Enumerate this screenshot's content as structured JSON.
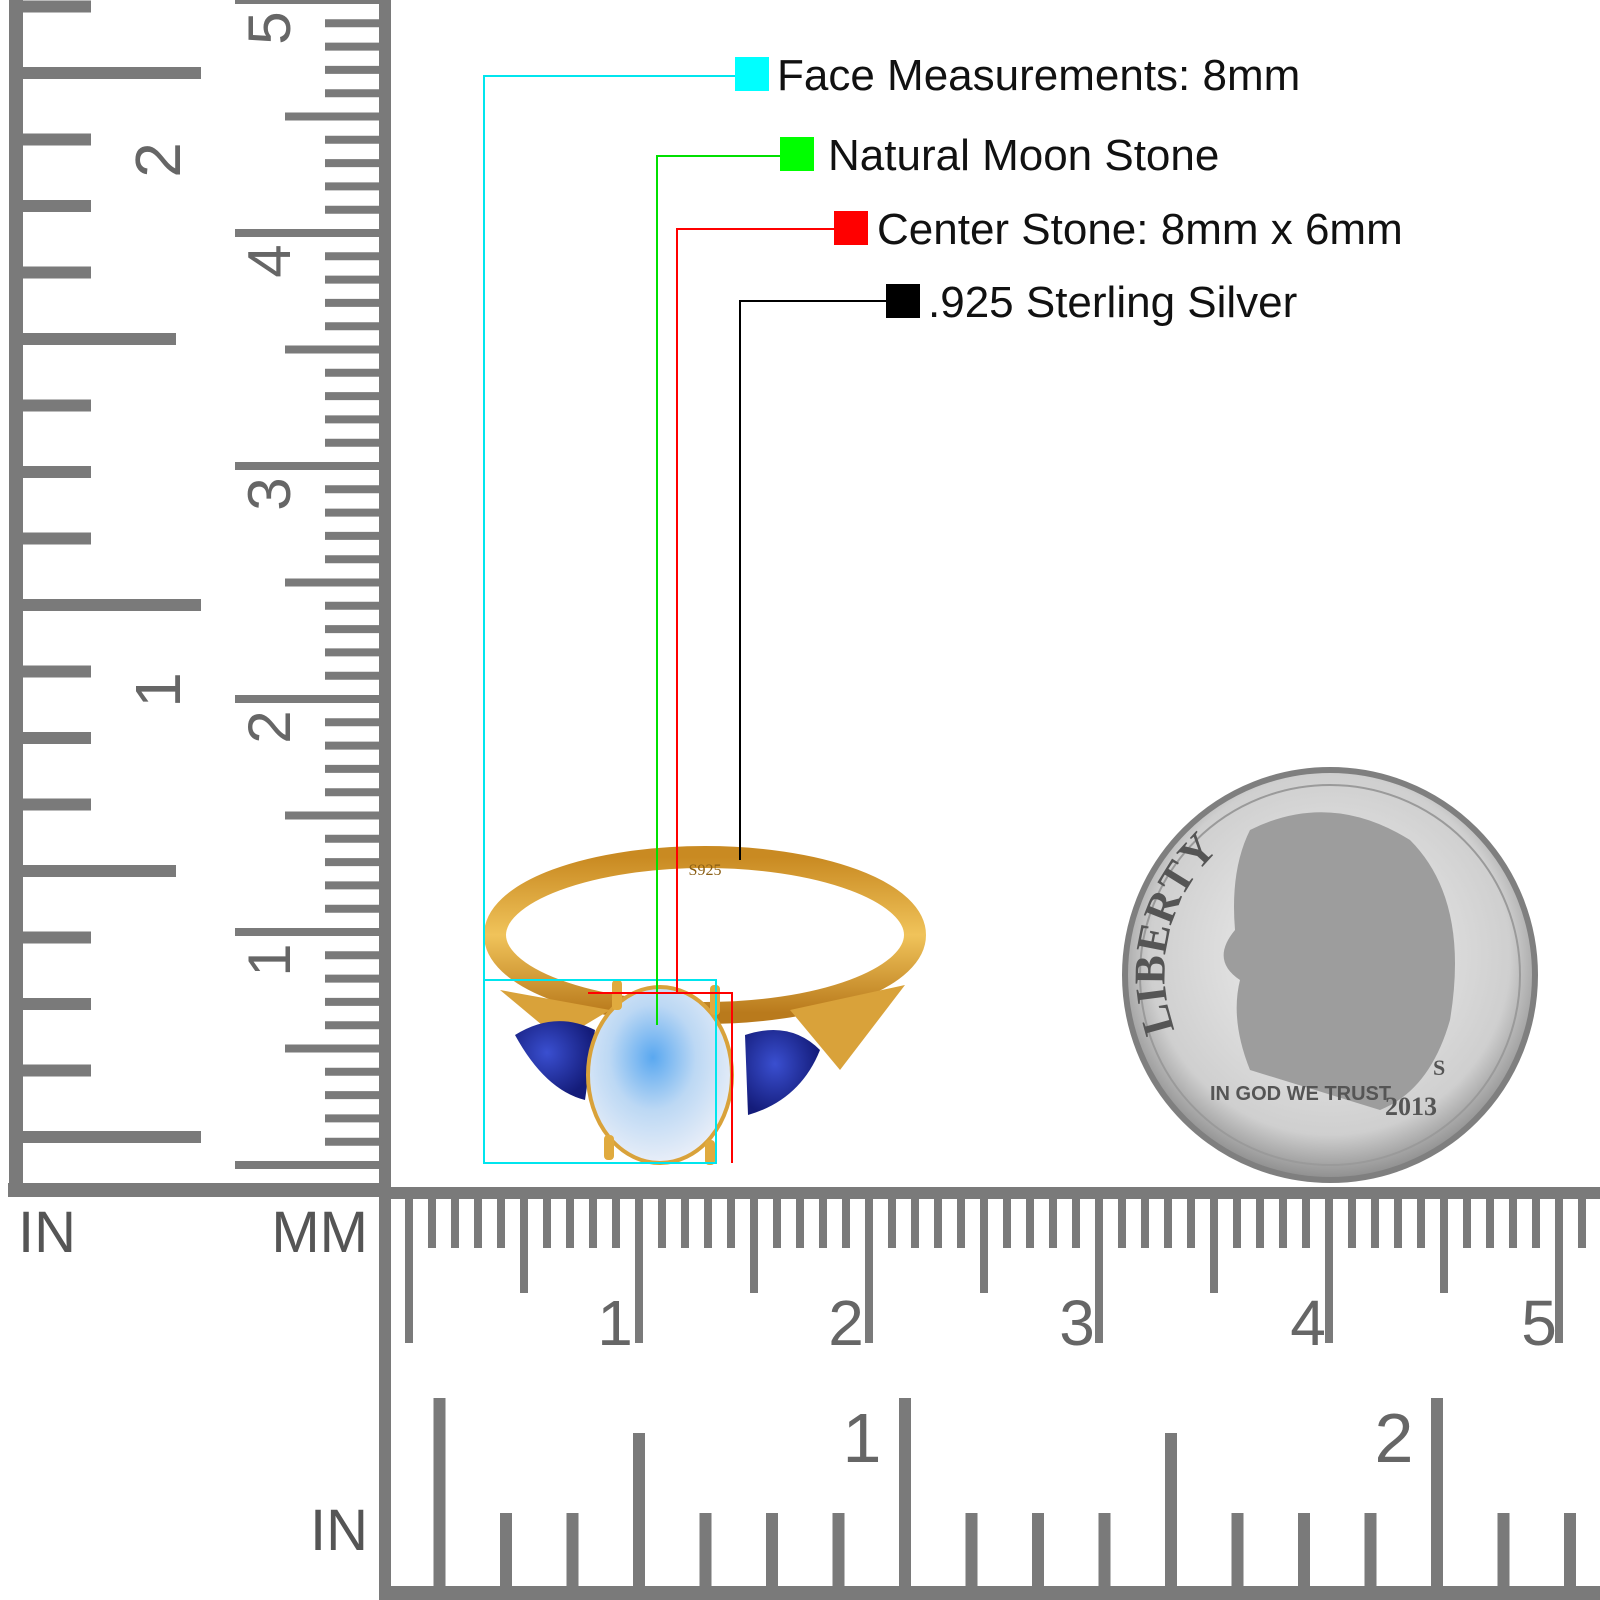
{
  "legend": [
    {
      "label": "Face Measurements: 8mm",
      "color": "#00ffff"
    },
    {
      "label": "Natural Moon Stone",
      "color": "#00ff00"
    },
    {
      "label": "Center Stone: 8mm x 6mm",
      "color": "#ff0000"
    },
    {
      "label": ".925 Sterling Silver",
      "color": "#000000"
    }
  ],
  "rulers": {
    "unit_in_left": "IN",
    "unit_mm": "MM",
    "unit_in_bottom": "IN",
    "vertical_cm_labels": [
      "1",
      "2",
      "3",
      "4",
      "5"
    ],
    "vertical_in_labels": [
      "1",
      "2"
    ],
    "horizontal_cm_labels": [
      "1",
      "2",
      "3",
      "4",
      "5"
    ],
    "horizontal_in_labels": [
      "1",
      "2"
    ],
    "tick_color": "#7a7a7a"
  },
  "ring": {
    "engraving": "S925",
    "band_color": "#d9a23a",
    "center_stone_color": "#bcd8f4",
    "side_stone_color": "#1e2a9a"
  },
  "coin": {
    "legend_top": "LIBERTY",
    "motto": "IN GOD WE TRUST",
    "year": "2013",
    "mint_mark": "S"
  }
}
